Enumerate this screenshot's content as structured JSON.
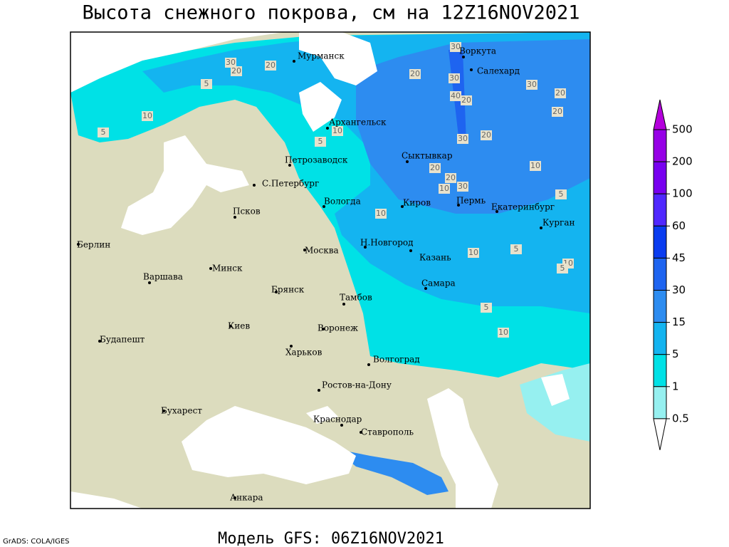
{
  "title": "Высота снежного покрова, см на 12Z16NOV2021",
  "model": "Модель GFS: 06Z16NOV2021",
  "credit": "GrADS: COLA/IGES",
  "cities": [
    "Мурманск",
    "Воркута",
    "Салехард",
    "Архангельск",
    "Сыктывкар",
    "Петрозаводск",
    "С.Петербург",
    "Вологда",
    "Киров",
    "Пермь",
    "Екатеринбург",
    "Курган",
    "Псков",
    "Берлин",
    "Н.Новгород",
    "Москва",
    "Казань",
    "Минск",
    "Варшава",
    "Самара",
    "Брянск",
    "Тамбов",
    "Киев",
    "Воронеж",
    "Будапешт",
    "Харьков",
    "Волгоград",
    "Ростов-на-Дону",
    "Бухарест",
    "Краснодар",
    "Ставрополь",
    "Анкара"
  ],
  "contour_labels": [
    30,
    30,
    20,
    20,
    5,
    10,
    5,
    10,
    5,
    20,
    30,
    30,
    20,
    40,
    20,
    20,
    30,
    20,
    20,
    20,
    30,
    10,
    10,
    5,
    10,
    5,
    10,
    10,
    5,
    5,
    10
  ],
  "legend": {
    "levels": [
      500,
      200,
      100,
      60,
      45,
      30,
      15,
      5,
      1,
      0.5
    ],
    "colors": [
      "#b400dc",
      "#9600e6",
      "#7800f0",
      "#5028ff",
      "#0a3cf0",
      "#1e64f0",
      "#2d8cf0",
      "#14b4f0",
      "#00e1e6",
      "#96f0f0",
      "#ffffff"
    ]
  }
}
